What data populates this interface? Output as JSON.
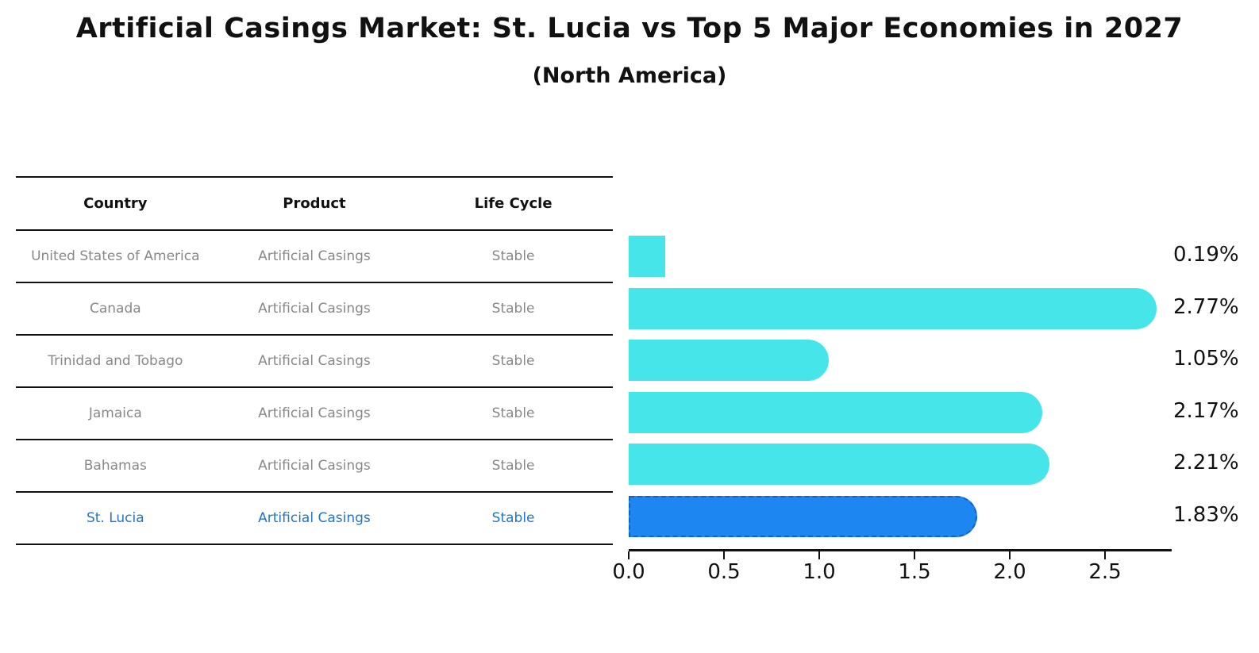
{
  "title": "Artificial Casings Market: St. Lucia vs Top 5 Major Economies in 2027",
  "subtitle": "(North America)",
  "table": {
    "headers": [
      "Country",
      "Product",
      "Life Cycle"
    ],
    "rows": [
      {
        "country": "United States of America",
        "product": "Artificial Casings",
        "life_cycle": "Stable",
        "highlight": false
      },
      {
        "country": "Canada",
        "product": "Artificial Casings",
        "life_cycle": "Stable",
        "highlight": false
      },
      {
        "country": "Trinidad and Tobago",
        "product": "Artificial Casings",
        "life_cycle": "Stable",
        "highlight": false
      },
      {
        "country": "Jamaica",
        "product": "Artificial Casings",
        "life_cycle": "Stable",
        "highlight": false
      },
      {
        "country": "Bahamas",
        "product": "Artificial Casings",
        "life_cycle": "Stable",
        "highlight": true
      }
    ]
  },
  "chart_data": {
    "type": "bar",
    "orientation": "horizontal",
    "title": "Artificial Casings Market: St. Lucia vs Top 5 Major Economies in 2027",
    "subtitle": "(North America)",
    "categories": [
      "United States of America",
      "Canada",
      "Trinidad and Tobago",
      "Jamaica",
      "Bahamas",
      "St. Lucia"
    ],
    "values": [
      0.19,
      2.77,
      1.05,
      2.17,
      2.21,
      1.83
    ],
    "value_labels": [
      "0.19%",
      "2.77%",
      "1.05%",
      "2.17%",
      "2.21%",
      "1.83%"
    ],
    "x_tick_labels": [
      "0.0",
      "0.5",
      "1.0",
      "1.5",
      "2.0",
      "2.5"
    ],
    "xlim": [
      0,
      2.85
    ],
    "grid": false,
    "legend": "none",
    "highlight_index": 5,
    "bar_color": "#46E5EA",
    "highlight_color": "#1E86F0",
    "highlight_border_color": "#1260C8"
  },
  "colors": {
    "text_black": "#111111",
    "table_text_gray": "#888888",
    "highlight_text": "#2176C7",
    "background": "#ffffff"
  },
  "st_lucia_row": {
    "country": "St. Lucia",
    "product": "Artificial Casings",
    "life_cycle": "Stable"
  }
}
